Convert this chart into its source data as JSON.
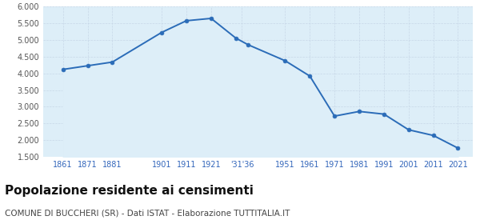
{
  "years": [
    1861,
    1871,
    1881,
    1901,
    1911,
    1921,
    1931,
    1936,
    1951,
    1961,
    1971,
    1981,
    1991,
    2001,
    2011,
    2021
  ],
  "population": [
    4120,
    4230,
    4340,
    5230,
    5580,
    5650,
    5060,
    4860,
    4380,
    3920,
    2720,
    2860,
    2780,
    2310,
    2140,
    1760
  ],
  "x_tick_labels": [
    "1861",
    "1871",
    "1881",
    "1901",
    "1911",
    "1921",
    "'31'36",
    "1951",
    "1961",
    "1971",
    "1981",
    "1991",
    "2001",
    "2011",
    "2021"
  ],
  "x_tick_positions": [
    1861,
    1871,
    1881,
    1901,
    1911,
    1921,
    1933.5,
    1951,
    1961,
    1971,
    1981,
    1991,
    2001,
    2011,
    2021
  ],
  "ylim": [
    1500,
    6000
  ],
  "yticks": [
    1500,
    2000,
    2500,
    3000,
    3500,
    4000,
    4500,
    5000,
    5500,
    6000
  ],
  "line_color": "#2b6cb8",
  "fill_color": "#ddeef8",
  "marker_color": "#2b6cb8",
  "bg_color": "#ffffff",
  "grid_color": "#c8d8e8",
  "title": "Popolazione residente ai censimenti",
  "subtitle": "COMUNE DI BUCCHERI (SR) - Dati ISTAT - Elaborazione TUTTITALIA.IT",
  "title_fontsize": 11,
  "subtitle_fontsize": 7.5,
  "tick_color": "#3366bb",
  "ytick_color": "#555555"
}
